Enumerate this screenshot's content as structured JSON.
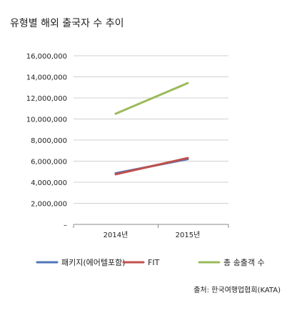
{
  "page": {
    "title": "유형별 해외 출국자 수 추이",
    "source": "출처: 한국여행업협회(KATA)"
  },
  "chart_data": {
    "type": "line",
    "title": "유형별 해외 출국자 수 추이",
    "categories": [
      "2014년",
      "2015년"
    ],
    "ylim": [
      0,
      16000000
    ],
    "yticks": [
      0,
      2000000,
      4000000,
      6000000,
      8000000,
      10000000,
      12000000,
      14000000,
      16000000
    ],
    "ytick_labels": [
      "–",
      "2,000,000",
      "4,000,000",
      "6,000,000",
      "8,000,000",
      "10,000,000",
      "12,000,000",
      "14,000,000",
      "16,000,000"
    ],
    "grid": "y",
    "legend_position": "bottom",
    "series": [
      {
        "name": "패키지(에어텔포함)",
        "values": [
          4850000,
          6200000
        ],
        "color": "#4f74b8"
      },
      {
        "name": "FIT",
        "values": [
          4750000,
          6300000
        ],
        "color": "#c0504d"
      },
      {
        "name": "총 송출객 수",
        "values": [
          10500000,
          13400000
        ],
        "color": "#9bbb59"
      }
    ]
  }
}
